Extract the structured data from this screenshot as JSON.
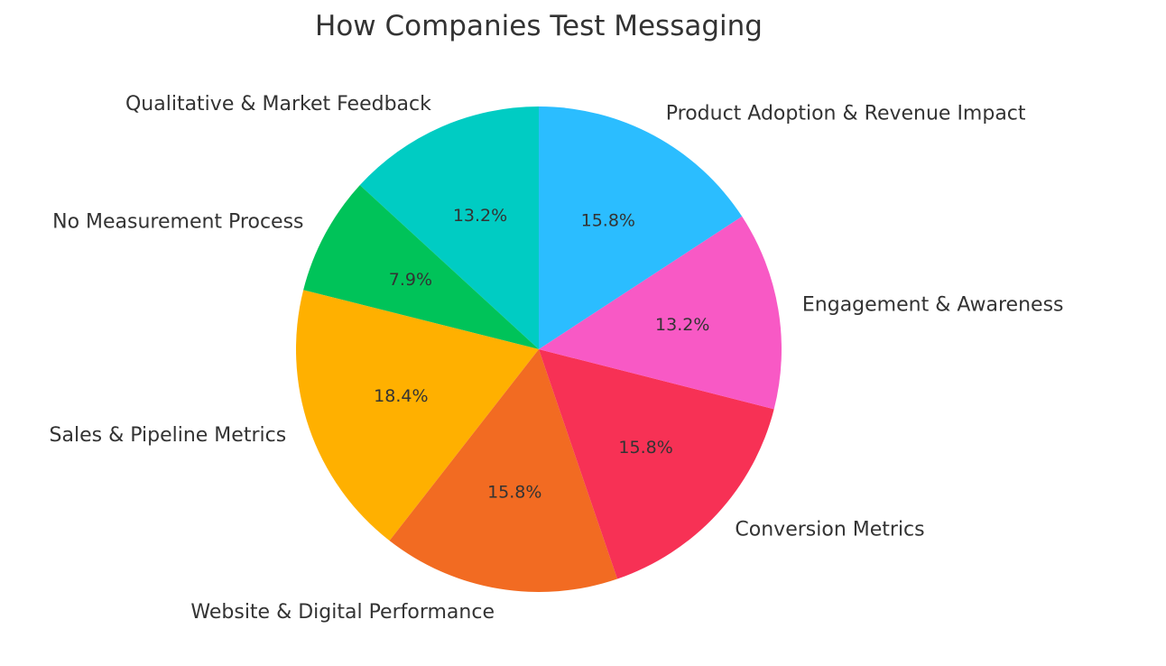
{
  "chart_data": {
    "type": "pie",
    "title": "How Companies Test Messaging",
    "start_angle_deg": 90,
    "direction": "counterclockwise",
    "slices": [
      {
        "label": "Qualitative & Market Feedback",
        "value": 13.2,
        "pct_label": "13.2%",
        "color": "#00CCC3"
      },
      {
        "label": "No Measurement Process",
        "value": 7.9,
        "pct_label": "7.9%",
        "color": "#00C359"
      },
      {
        "label": "Sales & Pipeline Metrics",
        "value": 18.4,
        "pct_label": "18.4%",
        "color": "#FFB000"
      },
      {
        "label": "Website & Digital Performance",
        "value": 15.8,
        "pct_label": "15.8%",
        "color": "#F26B22"
      },
      {
        "label": "Conversion Metrics",
        "value": 15.8,
        "pct_label": "15.8%",
        "color": "#F73155"
      },
      {
        "label": "Engagement & Awareness",
        "value": 13.2,
        "pct_label": "13.2%",
        "color": "#F859C5"
      },
      {
        "label": "Product Adoption & Revenue Impact",
        "value": 15.8,
        "pct_label": "15.8%",
        "color": "#2BBDFF"
      }
    ]
  }
}
